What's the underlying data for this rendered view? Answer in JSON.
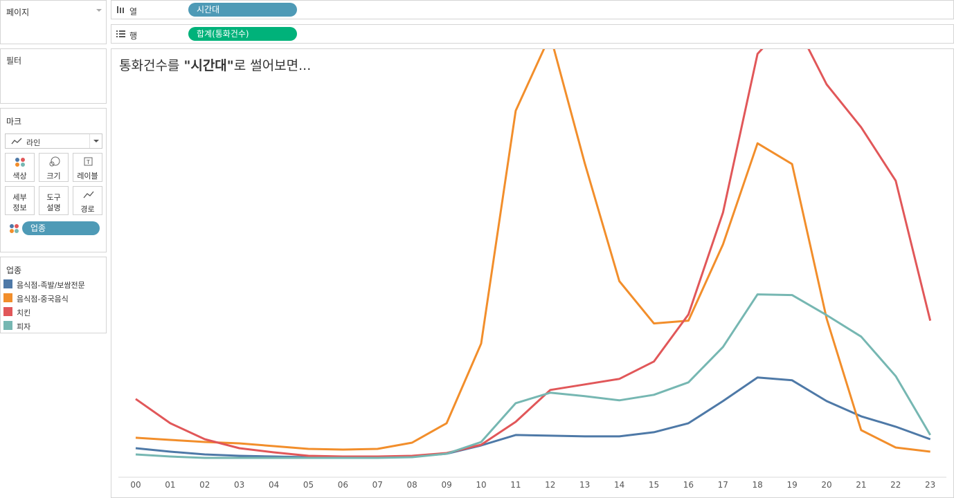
{
  "pages": {
    "title": "페이지"
  },
  "filters": {
    "title": "필터"
  },
  "marks": {
    "title": "마크",
    "type_label": "라인",
    "buttons": {
      "color": "색상",
      "size": "크기",
      "label": "레이블",
      "detail": [
        "세부",
        "정보"
      ],
      "tooltip": [
        "도구",
        "설명"
      ],
      "path": "경로"
    },
    "color_field": "업종"
  },
  "legend": {
    "title": "업종",
    "items": [
      {
        "label": "음식점-족발/보쌈전문",
        "color": "#4e79a7"
      },
      {
        "label": "음식점-중국음식",
        "color": "#f28e2b"
      },
      {
        "label": "치킨",
        "color": "#e15759"
      },
      {
        "label": "피자",
        "color": "#76b7b2"
      }
    ]
  },
  "columns_shelf": {
    "label": "열",
    "pill": "시간대"
  },
  "rows_shelf": {
    "label": "행",
    "pill": "합계(통화건수)"
  },
  "view": {
    "title_prefix": "통화건수를 ",
    "title_bold": "\"시간대\"",
    "title_suffix": "로 썰어보면..."
  },
  "chart_data": {
    "type": "line",
    "x": [
      "00",
      "01",
      "02",
      "03",
      "04",
      "05",
      "06",
      "07",
      "08",
      "09",
      "10",
      "11",
      "12",
      "13",
      "14",
      "15",
      "16",
      "17",
      "18",
      "19",
      "20",
      "21",
      "22",
      "23"
    ],
    "ylim": [
      0,
      550
    ],
    "grid": false,
    "series": [
      {
        "name": "음식점-족발/보쌈전문",
        "color": "#4e79a7",
        "values": [
          14,
          9,
          5,
          3,
          2,
          1,
          1,
          1,
          2,
          6,
          18,
          33,
          32,
          31,
          31,
          37,
          50,
          82,
          116,
          112,
          82,
          60,
          45,
          27
        ]
      },
      {
        "name": "음식점-중국음식",
        "color": "#f28e2b",
        "values": [
          29,
          26,
          23,
          21,
          17,
          13,
          12,
          13,
          22,
          50,
          165,
          501,
          610,
          425,
          255,
          194,
          198,
          308,
          454,
          424,
          201,
          40,
          15,
          9
        ]
      },
      {
        "name": "치킨",
        "color": "#e15759",
        "values": [
          85,
          50,
          27,
          14,
          8,
          3,
          2,
          2,
          3,
          7,
          19,
          52,
          98,
          106,
          114,
          139,
          207,
          354,
          583,
          637,
          539,
          477,
          400,
          198
        ]
      },
      {
        "name": "피자",
        "color": "#76b7b2",
        "values": [
          5,
          2,
          0,
          0,
          0,
          0,
          0,
          0,
          1,
          6,
          23,
          79,
          94,
          89,
          83,
          91,
          109,
          160,
          236,
          235,
          206,
          175,
          118,
          33
        ]
      }
    ]
  }
}
